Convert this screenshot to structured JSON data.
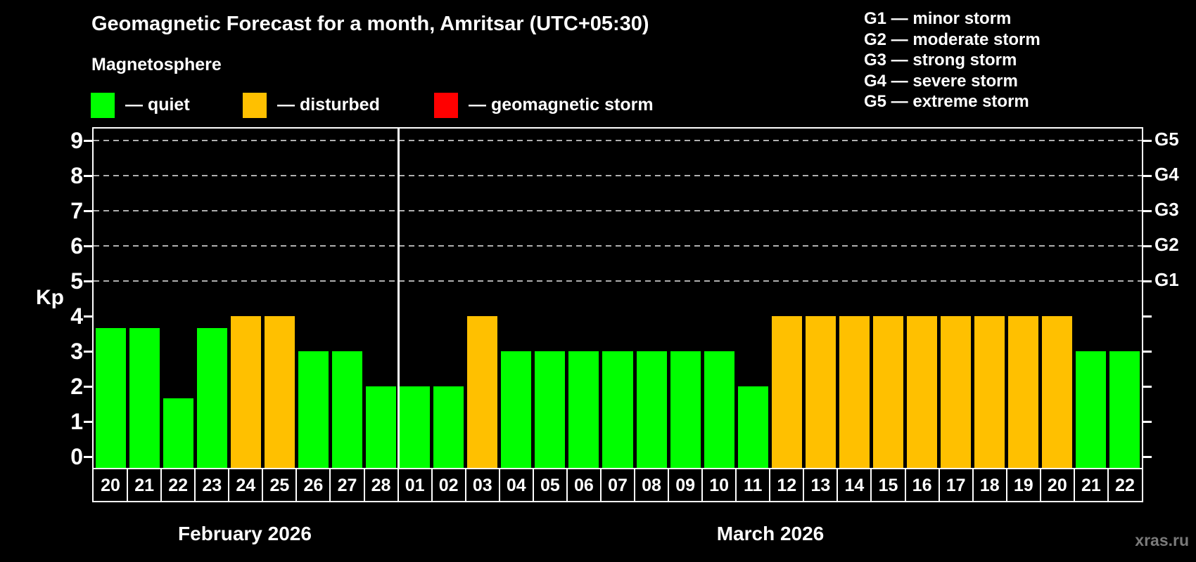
{
  "title": "Geomagnetic Forecast for a month, Amritsar (UTC+05:30)",
  "subtitle": "Magnetosphere",
  "watermark": "xras.ru",
  "colors": {
    "quiet": "#00ff00",
    "disturbed": "#ffc000",
    "storm": "#ff0000",
    "grid": "#b0b0b0",
    "axis": "#ffffff",
    "background": "#000000"
  },
  "legend": {
    "items": [
      {
        "status": "quiet",
        "label": "— quiet",
        "color": "#00ff00"
      },
      {
        "status": "disturbed",
        "label": "— disturbed",
        "color": "#ffc000"
      },
      {
        "status": "storm",
        "label": "— geomagnetic storm",
        "color": "#ff0000"
      }
    ]
  },
  "storm_scale_legend": [
    "G1 — minor storm",
    "G2 — moderate storm",
    "G3 — strong storm",
    "G4 — severe storm",
    "G5 — extreme storm"
  ],
  "chart_data": {
    "type": "bar",
    "title": "Geomagnetic Forecast for a month, Amritsar (UTC+05:30)",
    "ylabel": "Kp",
    "ylim": [
      0,
      9
    ],
    "y_ticks": [
      0,
      1,
      2,
      3,
      4,
      5,
      6,
      7,
      8,
      9
    ],
    "grid": "dashed horizontal at Kp 5-9 only",
    "gridlines_at": [
      5,
      6,
      7,
      8,
      9
    ],
    "right_axis_labels": [
      {
        "text": "G1",
        "kp": 5
      },
      {
        "text": "G2",
        "kp": 6
      },
      {
        "text": "G3",
        "kp": 7
      },
      {
        "text": "G4",
        "kp": 8
      },
      {
        "text": "G5",
        "kp": 9
      }
    ],
    "months": [
      {
        "label": "February 2026",
        "days": [
          "20",
          "21",
          "22",
          "23",
          "24",
          "25",
          "26",
          "27",
          "28"
        ]
      },
      {
        "label": "March 2026",
        "days": [
          "01",
          "02",
          "03",
          "04",
          "05",
          "06",
          "07",
          "08",
          "09",
          "10",
          "11",
          "12",
          "13",
          "14",
          "15",
          "16",
          "17",
          "18",
          "19",
          "20",
          "21",
          "22"
        ]
      }
    ],
    "bars": [
      {
        "day": "20",
        "kp": 3.67,
        "status": "quiet"
      },
      {
        "day": "21",
        "kp": 3.67,
        "status": "quiet"
      },
      {
        "day": "22",
        "kp": 1.67,
        "status": "quiet"
      },
      {
        "day": "23",
        "kp": 3.67,
        "status": "quiet"
      },
      {
        "day": "24",
        "kp": 4,
        "status": "disturbed"
      },
      {
        "day": "25",
        "kp": 4,
        "status": "disturbed"
      },
      {
        "day": "26",
        "kp": 3,
        "status": "quiet"
      },
      {
        "day": "27",
        "kp": 3,
        "status": "quiet"
      },
      {
        "day": "28",
        "kp": 2,
        "status": "quiet"
      },
      {
        "day": "01",
        "kp": 2,
        "status": "quiet"
      },
      {
        "day": "02",
        "kp": 2,
        "status": "quiet"
      },
      {
        "day": "03",
        "kp": 4,
        "status": "disturbed"
      },
      {
        "day": "04",
        "kp": 3,
        "status": "quiet"
      },
      {
        "day": "05",
        "kp": 3,
        "status": "quiet"
      },
      {
        "day": "06",
        "kp": 3,
        "status": "quiet"
      },
      {
        "day": "07",
        "kp": 3,
        "status": "quiet"
      },
      {
        "day": "08",
        "kp": 3,
        "status": "quiet"
      },
      {
        "day": "09",
        "kp": 3,
        "status": "quiet"
      },
      {
        "day": "10",
        "kp": 3,
        "status": "quiet"
      },
      {
        "day": "11",
        "kp": 2,
        "status": "quiet"
      },
      {
        "day": "12",
        "kp": 4,
        "status": "disturbed"
      },
      {
        "day": "13",
        "kp": 4,
        "status": "disturbed"
      },
      {
        "day": "14",
        "kp": 4,
        "status": "disturbed"
      },
      {
        "day": "15",
        "kp": 4,
        "status": "disturbed"
      },
      {
        "day": "16",
        "kp": 4,
        "status": "disturbed"
      },
      {
        "day": "17",
        "kp": 4,
        "status": "disturbed"
      },
      {
        "day": "18",
        "kp": 4,
        "status": "disturbed"
      },
      {
        "day": "19",
        "kp": 4,
        "status": "disturbed"
      },
      {
        "day": "20",
        "kp": 4,
        "status": "disturbed"
      },
      {
        "day": "21",
        "kp": 3,
        "status": "quiet"
      },
      {
        "day": "22",
        "kp": 3,
        "status": "quiet"
      }
    ]
  }
}
